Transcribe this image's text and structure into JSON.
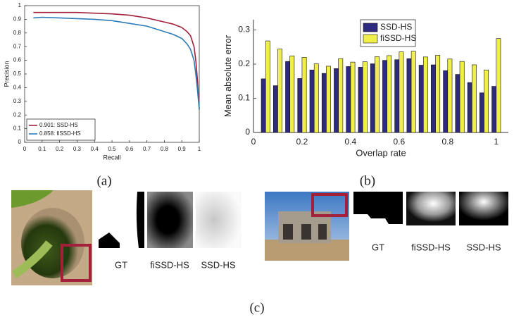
{
  "chart_data": [
    {
      "type": "line",
      "xlabel": "Recall",
      "ylabel": "Precision",
      "x": [
        0.05,
        0.1,
        0.2,
        0.3,
        0.4,
        0.5,
        0.6,
        0.7,
        0.8,
        0.85,
        0.9,
        0.93,
        0.95,
        0.97,
        0.98,
        0.99,
        1.0
      ],
      "series": [
        {
          "name": "0.901: SSD-HS",
          "color": "#a3203a",
          "values": [
            0.95,
            0.95,
            0.95,
            0.95,
            0.945,
            0.94,
            0.93,
            0.91,
            0.88,
            0.865,
            0.84,
            0.81,
            0.78,
            0.7,
            0.6,
            0.45,
            0.24
          ]
        },
        {
          "name": "0.858: fiSSD-HS",
          "color": "#2b7bba",
          "values": [
            0.91,
            0.915,
            0.91,
            0.905,
            0.9,
            0.89,
            0.87,
            0.85,
            0.81,
            0.79,
            0.76,
            0.72,
            0.68,
            0.6,
            0.5,
            0.38,
            0.24
          ]
        }
      ],
      "xlim": [
        0,
        1
      ],
      "ylim": [
        0,
        1
      ],
      "xticks": [
        0,
        0.1,
        0.2,
        0.3,
        0.4,
        0.5,
        0.6,
        0.7,
        0.8,
        0.9,
        1
      ],
      "yticks": [
        0,
        0.1,
        0.2,
        0.3,
        0.4,
        0.5,
        0.6,
        0.7,
        0.8,
        0.9,
        1
      ],
      "legend": "lower left",
      "box": true
    },
    {
      "type": "bar",
      "xlabel": "Overlap rate",
      "ylabel": "Mean absolute error",
      "x": [
        0.05,
        0.1,
        0.15,
        0.2,
        0.25,
        0.3,
        0.35,
        0.4,
        0.45,
        0.5,
        0.55,
        0.6,
        0.65,
        0.7,
        0.75,
        0.8,
        0.85,
        0.9,
        0.95,
        1.0
      ],
      "series": [
        {
          "name": "SSD-HS",
          "color": "#2e2a7e",
          "values": [
            0.157,
            0.137,
            0.208,
            0.158,
            0.183,
            0.173,
            0.187,
            0.193,
            0.191,
            0.201,
            0.211,
            0.213,
            0.216,
            0.197,
            0.198,
            0.181,
            0.17,
            0.146,
            0.116,
            0.135
          ]
        },
        {
          "name": "fiSSD-HS",
          "color": "#f0ef4a",
          "values": [
            0.268,
            0.244,
            0.224,
            0.22,
            0.201,
            0.194,
            0.216,
            0.206,
            0.207,
            0.222,
            0.225,
            0.236,
            0.238,
            0.221,
            0.226,
            0.215,
            0.208,
            0.198,
            0.183,
            0.275
          ]
        }
      ],
      "xlim": [
        0,
        1.05
      ],
      "ylim": [
        0,
        0.33
      ],
      "xticks": [
        0,
        0.2,
        0.4,
        0.6,
        0.8,
        1
      ],
      "yticks": [
        0,
        0.1,
        0.2,
        0.3
      ],
      "legend": "upper center",
      "box": false
    }
  ],
  "captions": {
    "a": "(a)",
    "b": "(b)",
    "c": "(c)"
  },
  "image_labels": {
    "broccoli": [
      "GT",
      "fiSSD-HS",
      "SSD-HS"
    ],
    "house": [
      "GT",
      "fiSSD-HS",
      "SSD-HS"
    ]
  }
}
